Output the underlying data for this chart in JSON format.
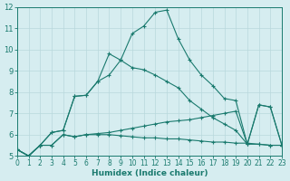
{
  "xlabel": "Humidex (Indice chaleur)",
  "bg_color": "#d6edf0",
  "line_color": "#1a7a6e",
  "grid_color": "#b8d8dc",
  "xlim": [
    0,
    23
  ],
  "ylim": [
    5,
    12
  ],
  "xticks": [
    0,
    1,
    2,
    3,
    4,
    5,
    6,
    7,
    8,
    9,
    10,
    11,
    12,
    13,
    14,
    15,
    16,
    17,
    18,
    19,
    20,
    21,
    22,
    23
  ],
  "yticks": [
    5,
    6,
    7,
    8,
    9,
    10,
    11,
    12
  ],
  "series": [
    {
      "x": [
        0,
        1,
        2,
        3,
        4,
        5,
        6,
        7,
        8,
        9,
        10,
        11,
        12,
        13,
        14,
        15,
        16,
        17,
        18,
        19,
        20,
        21,
        22,
        23
      ],
      "y": [
        5.3,
        5.0,
        5.5,
        5.5,
        6.0,
        5.9,
        6.0,
        6.0,
        6.0,
        5.95,
        5.9,
        5.85,
        5.85,
        5.8,
        5.8,
        5.75,
        5.7,
        5.65,
        5.65,
        5.6,
        5.6,
        5.55,
        5.5,
        5.5
      ]
    },
    {
      "x": [
        0,
        1,
        2,
        3,
        4,
        5,
        6,
        7,
        8,
        9,
        10,
        11,
        12,
        13,
        14,
        15,
        16,
        17,
        18,
        19,
        20,
        21,
        22,
        23
      ],
      "y": [
        5.3,
        5.0,
        5.5,
        5.5,
        6.0,
        5.9,
        6.0,
        6.05,
        6.1,
        6.2,
        6.3,
        6.4,
        6.5,
        6.6,
        6.65,
        6.7,
        6.8,
        6.9,
        7.0,
        7.1,
        5.55,
        5.55,
        5.5,
        5.5
      ]
    },
    {
      "x": [
        0,
        1,
        2,
        3,
        4,
        5,
        6,
        7,
        8,
        9,
        10,
        11,
        12,
        13,
        14,
        15,
        16,
        17,
        18,
        19,
        20,
        21,
        22,
        23
      ],
      "y": [
        5.3,
        5.0,
        5.5,
        6.1,
        6.2,
        7.8,
        7.85,
        8.5,
        8.8,
        9.5,
        9.15,
        9.05,
        8.8,
        8.5,
        8.2,
        7.6,
        7.2,
        6.8,
        6.5,
        6.2,
        5.55,
        7.4,
        7.3,
        5.5
      ]
    },
    {
      "x": [
        0,
        1,
        2,
        3,
        4,
        5,
        6,
        7,
        8,
        9,
        10,
        11,
        12,
        13,
        14,
        15,
        16,
        17,
        18,
        19,
        20,
        21,
        22,
        23
      ],
      "y": [
        5.3,
        5.0,
        5.5,
        6.1,
        6.2,
        7.8,
        7.85,
        8.5,
        9.8,
        9.5,
        10.75,
        11.1,
        11.75,
        11.85,
        10.5,
        9.5,
        8.8,
        8.3,
        7.7,
        7.6,
        5.55,
        7.4,
        7.3,
        5.5
      ]
    }
  ]
}
